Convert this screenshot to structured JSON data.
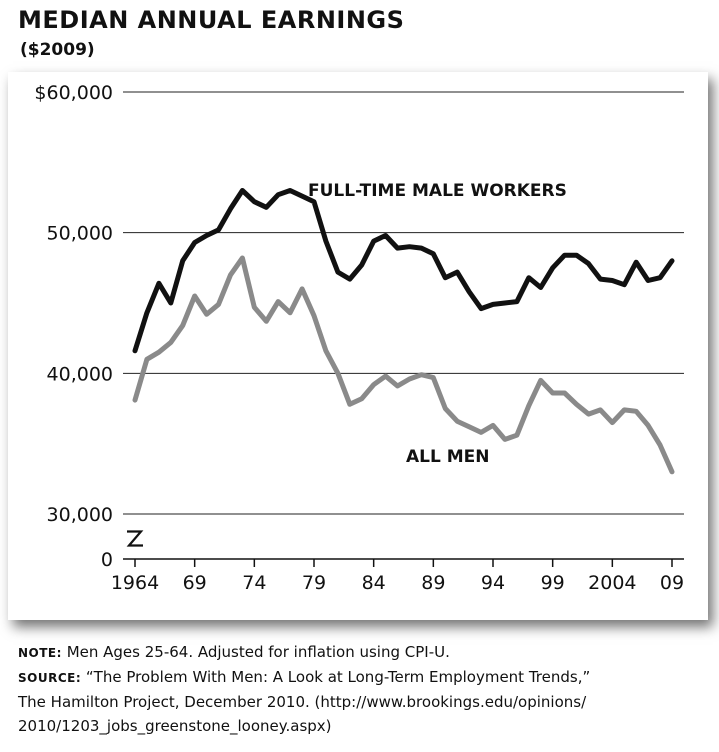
{
  "title": "MEDIAN ANNUAL EARNINGS",
  "subtitle": "($2009)",
  "chart_data": {
    "type": "line",
    "title": "MEDIAN ANNUAL EARNINGS",
    "subtitle": "($2009)",
    "ylim": [
      30000,
      60000
    ],
    "y_ticks": [
      {
        "value": 60000,
        "label": "$60,000"
      },
      {
        "value": 50000,
        "label": "50,000"
      },
      {
        "value": 40000,
        "label": "40,000"
      },
      {
        "value": 30000,
        "label": "30,000"
      }
    ],
    "y_zero_label": "0",
    "axis_break": true,
    "x_ticks": [
      {
        "value": 1964,
        "label": "1964"
      },
      {
        "value": 1969,
        "label": "69"
      },
      {
        "value": 1974,
        "label": "74"
      },
      {
        "value": 1979,
        "label": "79"
      },
      {
        "value": 1984,
        "label": "84"
      },
      {
        "value": 1989,
        "label": "89"
      },
      {
        "value": 1994,
        "label": "94"
      },
      {
        "value": 1999,
        "label": "99"
      },
      {
        "value": 2004,
        "label": "2004"
      },
      {
        "value": 2009,
        "label": "09"
      }
    ],
    "grid": true,
    "x": [
      1964,
      1965,
      1966,
      1967,
      1968,
      1969,
      1970,
      1971,
      1972,
      1973,
      1974,
      1975,
      1976,
      1977,
      1978,
      1979,
      1980,
      1981,
      1982,
      1983,
      1984,
      1985,
      1986,
      1987,
      1988,
      1989,
      1990,
      1991,
      1992,
      1993,
      1994,
      1995,
      1996,
      1997,
      1998,
      1999,
      2000,
      2001,
      2002,
      2003,
      2004,
      2005,
      2006,
      2007,
      2008,
      2009
    ],
    "series": [
      {
        "name": "FULL-TIME MALE WORKERS",
        "color": "#111111",
        "values": [
          41600,
          44300,
          46400,
          45000,
          48000,
          49300,
          49800,
          50200,
          51700,
          53000,
          52200,
          51800,
          52700,
          53000,
          52600,
          52200,
          49400,
          47200,
          46700,
          47700,
          49400,
          49800,
          48900,
          49000,
          48900,
          48500,
          46800,
          47200,
          45800,
          44600,
          44900,
          45000,
          45100,
          46800,
          46100,
          47500,
          48400,
          48400,
          47800,
          46700,
          46600,
          46300,
          47900,
          46600,
          46800,
          48000
        ]
      },
      {
        "name": "ALL MEN",
        "color": "#8a8a8a",
        "values": [
          38100,
          41000,
          41500,
          42200,
          43400,
          45500,
          44200,
          44900,
          47000,
          48200,
          44700,
          43700,
          45100,
          44300,
          46000,
          44100,
          41600,
          40000,
          37800,
          38200,
          39200,
          39800,
          39100,
          39600,
          39900,
          39700,
          37500,
          36600,
          36200,
          35800,
          36300,
          35300,
          35600,
          37700,
          39500,
          38600,
          38600,
          37800,
          37100,
          37400,
          36500,
          37400,
          37300,
          36300,
          34900,
          33000
        ]
      }
    ]
  },
  "notes": {
    "note_label": "NOTE:",
    "note_text": " Men Ages 25-64. Adjusted for inflation using CPI-U.",
    "source_label": "SOURCE:",
    "source_line1": " “The Problem With Men: A Look at Long-Term Employment Trends,”",
    "source_line2": "The Hamilton Project, December 2010. (http://www.brookings.edu/opinions/",
    "source_line3": "2010/1203_jobs_greenstone_looney.aspx)"
  }
}
